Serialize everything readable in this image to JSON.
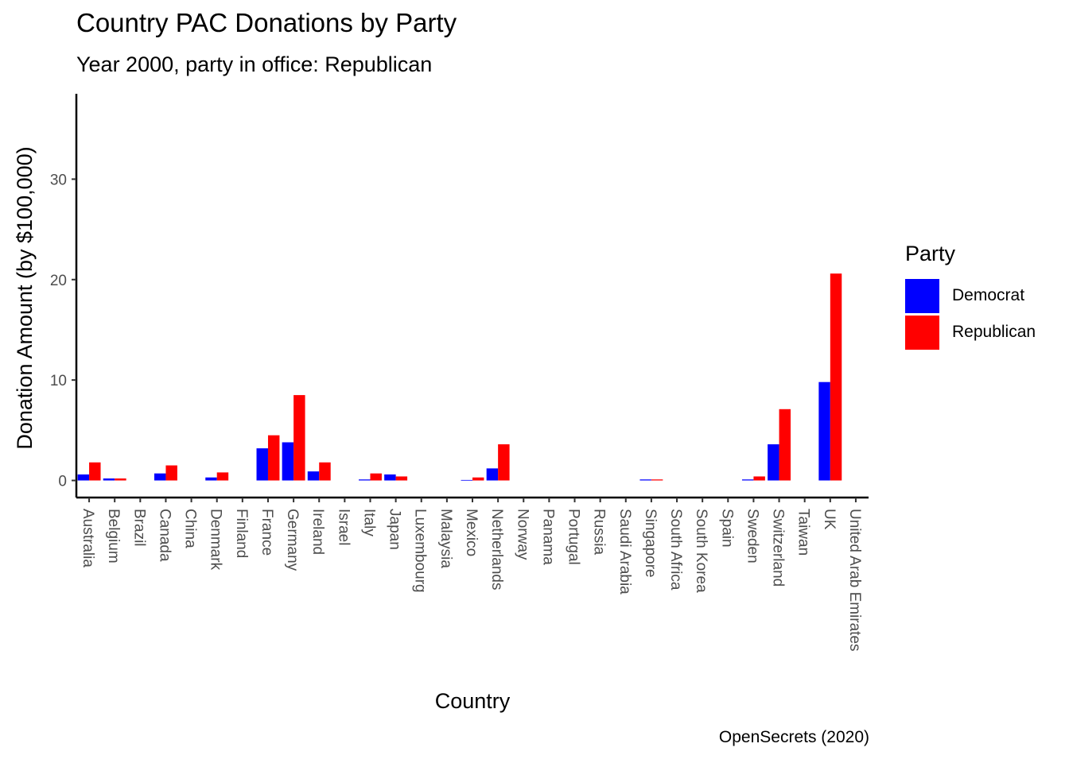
{
  "chart_data": {
    "type": "bar",
    "title": "Country PAC Donations by Party",
    "subtitle": "Year 2000, party in office: Republican",
    "xlabel": "Country",
    "ylabel": "Donation Amount (by $100,000)",
    "caption": "OpenSecrets (2020)",
    "ylim": [
      -1.7,
      38.5
    ],
    "yticks": [
      0,
      10,
      20,
      30
    ],
    "grid": false,
    "legend": {
      "title": "Party",
      "position": "right"
    },
    "categories": [
      "Australia",
      "Belgium",
      "Brazil",
      "Canada",
      "China",
      "Denmark",
      "Finland",
      "France",
      "Germany",
      "Ireland",
      "Israel",
      "Italy",
      "Japan",
      "Luxembourg",
      "Malaysia",
      "Mexico",
      "Netherlands",
      "Norway",
      "Panama",
      "Portugal",
      "Russia",
      "Saudi Arabia",
      "Singapore",
      "South Africa",
      "South Korea",
      "Spain",
      "Sweden",
      "Switzerland",
      "Taiwan",
      "UK",
      "United Arab Emirates"
    ],
    "series": [
      {
        "name": "Democrat",
        "color": "#0000FF",
        "values": [
          0.6,
          0.2,
          0,
          0.7,
          0,
          0.3,
          0,
          3.2,
          3.8,
          0.9,
          0,
          0.1,
          0.6,
          0,
          0,
          0.05,
          1.2,
          0,
          0,
          0,
          0,
          0,
          0.1,
          0,
          0,
          0,
          0.1,
          3.6,
          0,
          9.8,
          0
        ]
      },
      {
        "name": "Republican",
        "color": "#FF0000",
        "values": [
          1.8,
          0.2,
          0,
          1.5,
          0,
          0.8,
          0,
          4.5,
          8.5,
          1.8,
          0,
          0.7,
          0.4,
          0,
          0,
          0.3,
          3.6,
          0,
          0,
          0,
          0,
          0,
          0.1,
          0,
          0,
          0,
          0.4,
          7.1,
          0,
          20.6,
          0
        ]
      }
    ]
  }
}
